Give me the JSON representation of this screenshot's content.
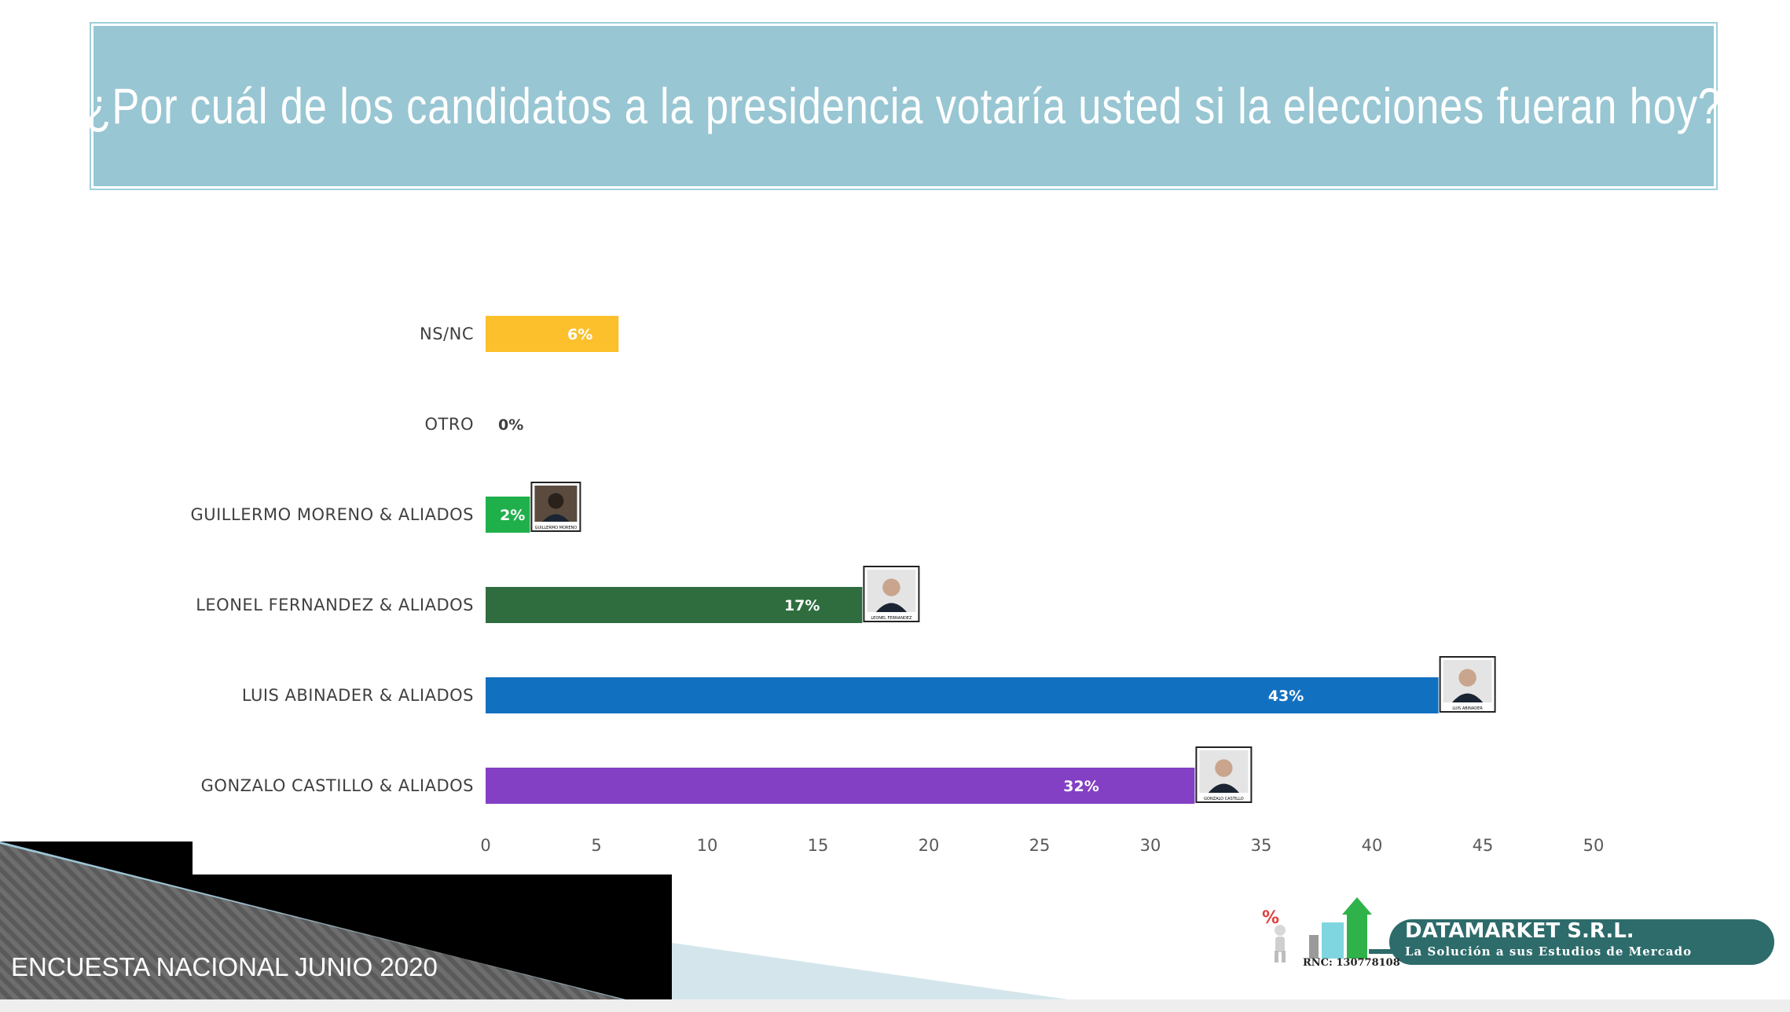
{
  "title": "¿Por cuál de los candidatos a la presidencia votaría usted si la elecciones fueran hoy?",
  "footer": {
    "survey": "ENCUESTA NACIONAL JUNIO 2020"
  },
  "logo": {
    "name": "DATAMARKET S.R.L.",
    "tagline": "La Solución a sus Estudios de Mercado",
    "rnc": "RNC: 130778108",
    "percent_symbol": "%"
  },
  "chart_data": {
    "type": "bar",
    "orientation": "horizontal",
    "categories": [
      "NS/NC",
      "OTRO",
      "GUILLERMO MORENO & ALIADOS",
      "LEONEL FERNANDEZ & ALIADOS",
      "LUIS ABINADER & ALIADOS",
      "GONZALO CASTILLO & ALIADOS"
    ],
    "values": [
      6,
      0,
      2,
      17,
      43,
      32
    ],
    "value_labels": [
      "6%",
      "0%",
      "2%",
      "17%",
      "43%",
      "32%"
    ],
    "colors": [
      "#fcc02c",
      "#ffffff",
      "#1fb04b",
      "#2f6d3f",
      "#1270c0",
      "#8440c4"
    ],
    "photo_captions": [
      "",
      "",
      "GUILLERMO MORENO",
      "LEONEL FERNANDEZ",
      "LUIS ABINADER",
      "GONZALO CASTILLO"
    ],
    "xlim": [
      0,
      50
    ],
    "xticks": [
      0,
      5,
      10,
      15,
      20,
      25,
      30,
      35,
      40,
      45,
      50
    ],
    "grid": false,
    "legend": "none"
  }
}
